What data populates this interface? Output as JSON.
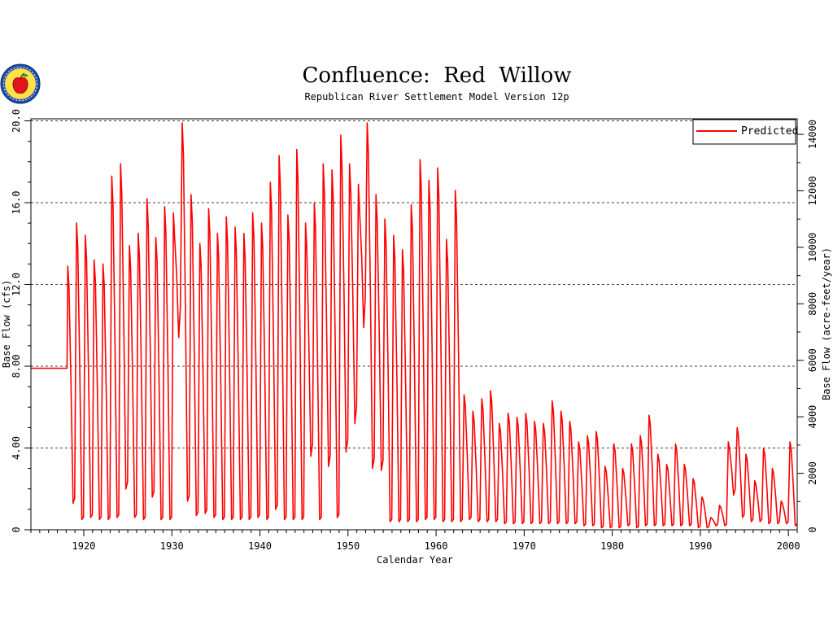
{
  "chart_data": {
    "type": "line",
    "title": "Confluence:  Red  Willow",
    "subtitle": "Republican River Settlement Model Version 12p",
    "xlabel": "Calendar Year",
    "ylabel_left": "Base Flow (cfs)",
    "ylabel_right": "Base Flow (acre-feet/year)",
    "xlim": [
      1914,
      2001
    ],
    "ylim": [
      0,
      20.1
    ],
    "ylim_right": [
      0,
      14550
    ],
    "x_ticks": [
      1920,
      1930,
      1940,
      1950,
      1960,
      1970,
      1980,
      1990,
      2000
    ],
    "x_tick_labels": [
      "1920",
      "1930",
      "1940",
      "1950",
      "1960",
      "1970",
      "1980",
      "1990",
      "2000"
    ],
    "y_ticks": [
      0,
      4,
      8,
      12,
      16,
      20
    ],
    "y_tick_labels": [
      "0",
      "4.00",
      "8.00",
      "12.0",
      "16.0",
      "20.0"
    ],
    "y_right_ticks": [
      2000,
      4000,
      6000,
      8000,
      10000,
      12000,
      14000
    ],
    "y_right_tick_labels": [
      "2000",
      "4000",
      "6000",
      "8000",
      "10000",
      "12000",
      "14000"
    ],
    "grid": "horizontal-dashed",
    "legend_position": "top-right",
    "colors": {
      "predicted": "#ff0000",
      "axes": "#000000",
      "grid": "#000000"
    },
    "logo": "apple-seal-icon",
    "series": [
      {
        "name": "Predicted",
        "constant_start": [
          [
            1914,
            7.9
          ],
          [
            1918.1,
            7.9
          ]
        ],
        "annual_cycles": [
          [
            1918,
            12.9,
            1.3
          ],
          [
            1919,
            15.0,
            0.5
          ],
          [
            1920,
            14.4,
            0.6
          ],
          [
            1921,
            13.2,
            0.5
          ],
          [
            1922,
            13.0,
            0.5
          ],
          [
            1923,
            17.3,
            0.6
          ],
          [
            1924,
            17.9,
            2.0
          ],
          [
            1925,
            13.9,
            0.6
          ],
          [
            1926,
            14.5,
            0.5
          ],
          [
            1927,
            16.2,
            1.6
          ],
          [
            1928,
            14.3,
            0.5
          ],
          [
            1929,
            15.8,
            0.5
          ],
          [
            1930,
            15.5,
            9.4
          ],
          [
            1931,
            19.9,
            1.4
          ],
          [
            1932,
            16.4,
            0.7
          ],
          [
            1933,
            14.0,
            0.8
          ],
          [
            1934,
            15.7,
            0.6
          ],
          [
            1935,
            14.5,
            0.5
          ],
          [
            1936,
            15.3,
            0.5
          ],
          [
            1937,
            14.8,
            0.5
          ],
          [
            1938,
            14.5,
            0.5
          ],
          [
            1939,
            15.5,
            0.6
          ],
          [
            1940,
            15.0,
            0.5
          ],
          [
            1941,
            17.0,
            1.0
          ],
          [
            1942,
            18.3,
            0.5
          ],
          [
            1943,
            15.4,
            0.5
          ],
          [
            1944,
            18.6,
            0.5
          ],
          [
            1945,
            15.0,
            3.6
          ],
          [
            1946,
            16.0,
            0.5
          ],
          [
            1947,
            17.9,
            3.1
          ],
          [
            1948,
            17.6,
            0.6
          ],
          [
            1949,
            19.3,
            3.8
          ],
          [
            1950,
            17.9,
            5.2
          ],
          [
            1951,
            16.9,
            9.9
          ],
          [
            1952,
            19.9,
            3.0
          ],
          [
            1953,
            16.4,
            2.9
          ],
          [
            1954,
            15.2,
            0.4
          ],
          [
            1955,
            14.4,
            0.4
          ],
          [
            1956,
            13.7,
            0.4
          ],
          [
            1957,
            15.9,
            0.4
          ],
          [
            1958,
            18.1,
            0.5
          ],
          [
            1959,
            17.1,
            0.5
          ],
          [
            1960,
            17.7,
            0.4
          ],
          [
            1961,
            14.2,
            0.4
          ],
          [
            1962,
            16.6,
            0.4
          ],
          [
            1963,
            6.6,
            0.5
          ],
          [
            1964,
            5.8,
            0.4
          ],
          [
            1965,
            6.4,
            0.4
          ],
          [
            1966,
            6.8,
            0.4
          ],
          [
            1967,
            5.2,
            0.3
          ],
          [
            1968,
            5.7,
            0.3
          ],
          [
            1969,
            5.5,
            0.3
          ],
          [
            1970,
            5.7,
            0.3
          ],
          [
            1971,
            5.3,
            0.3
          ],
          [
            1972,
            5.2,
            0.3
          ],
          [
            1973,
            6.3,
            0.3
          ],
          [
            1974,
            5.8,
            0.3
          ],
          [
            1975,
            5.3,
            0.3
          ],
          [
            1976,
            4.3,
            0.2
          ],
          [
            1977,
            4.6,
            0.2
          ],
          [
            1978,
            4.8,
            0.1
          ],
          [
            1979,
            3.1,
            0.1
          ],
          [
            1980,
            4.2,
            0.1
          ],
          [
            1981,
            3.0,
            0.2
          ],
          [
            1982,
            4.2,
            0.1
          ],
          [
            1983,
            4.6,
            0.2
          ],
          [
            1984,
            5.6,
            0.2
          ],
          [
            1985,
            3.7,
            0.2
          ],
          [
            1986,
            3.2,
            0.2
          ],
          [
            1987,
            4.2,
            0.2
          ],
          [
            1988,
            3.2,
            0.2
          ],
          [
            1989,
            2.5,
            0.1
          ],
          [
            1990,
            1.6,
            0.1
          ],
          [
            1991,
            0.6,
            0.2
          ],
          [
            1992,
            1.2,
            0.2
          ],
          [
            1993,
            4.3,
            1.7
          ],
          [
            1994,
            5.0,
            0.6
          ],
          [
            1995,
            3.7,
            0.4
          ],
          [
            1996,
            2.4,
            0.4
          ],
          [
            1997,
            4.0,
            0.3
          ],
          [
            1998,
            3.0,
            0.3
          ],
          [
            1999,
            1.4,
            0.3
          ],
          [
            2000,
            4.3,
            0.2
          ]
        ]
      }
    ]
  }
}
